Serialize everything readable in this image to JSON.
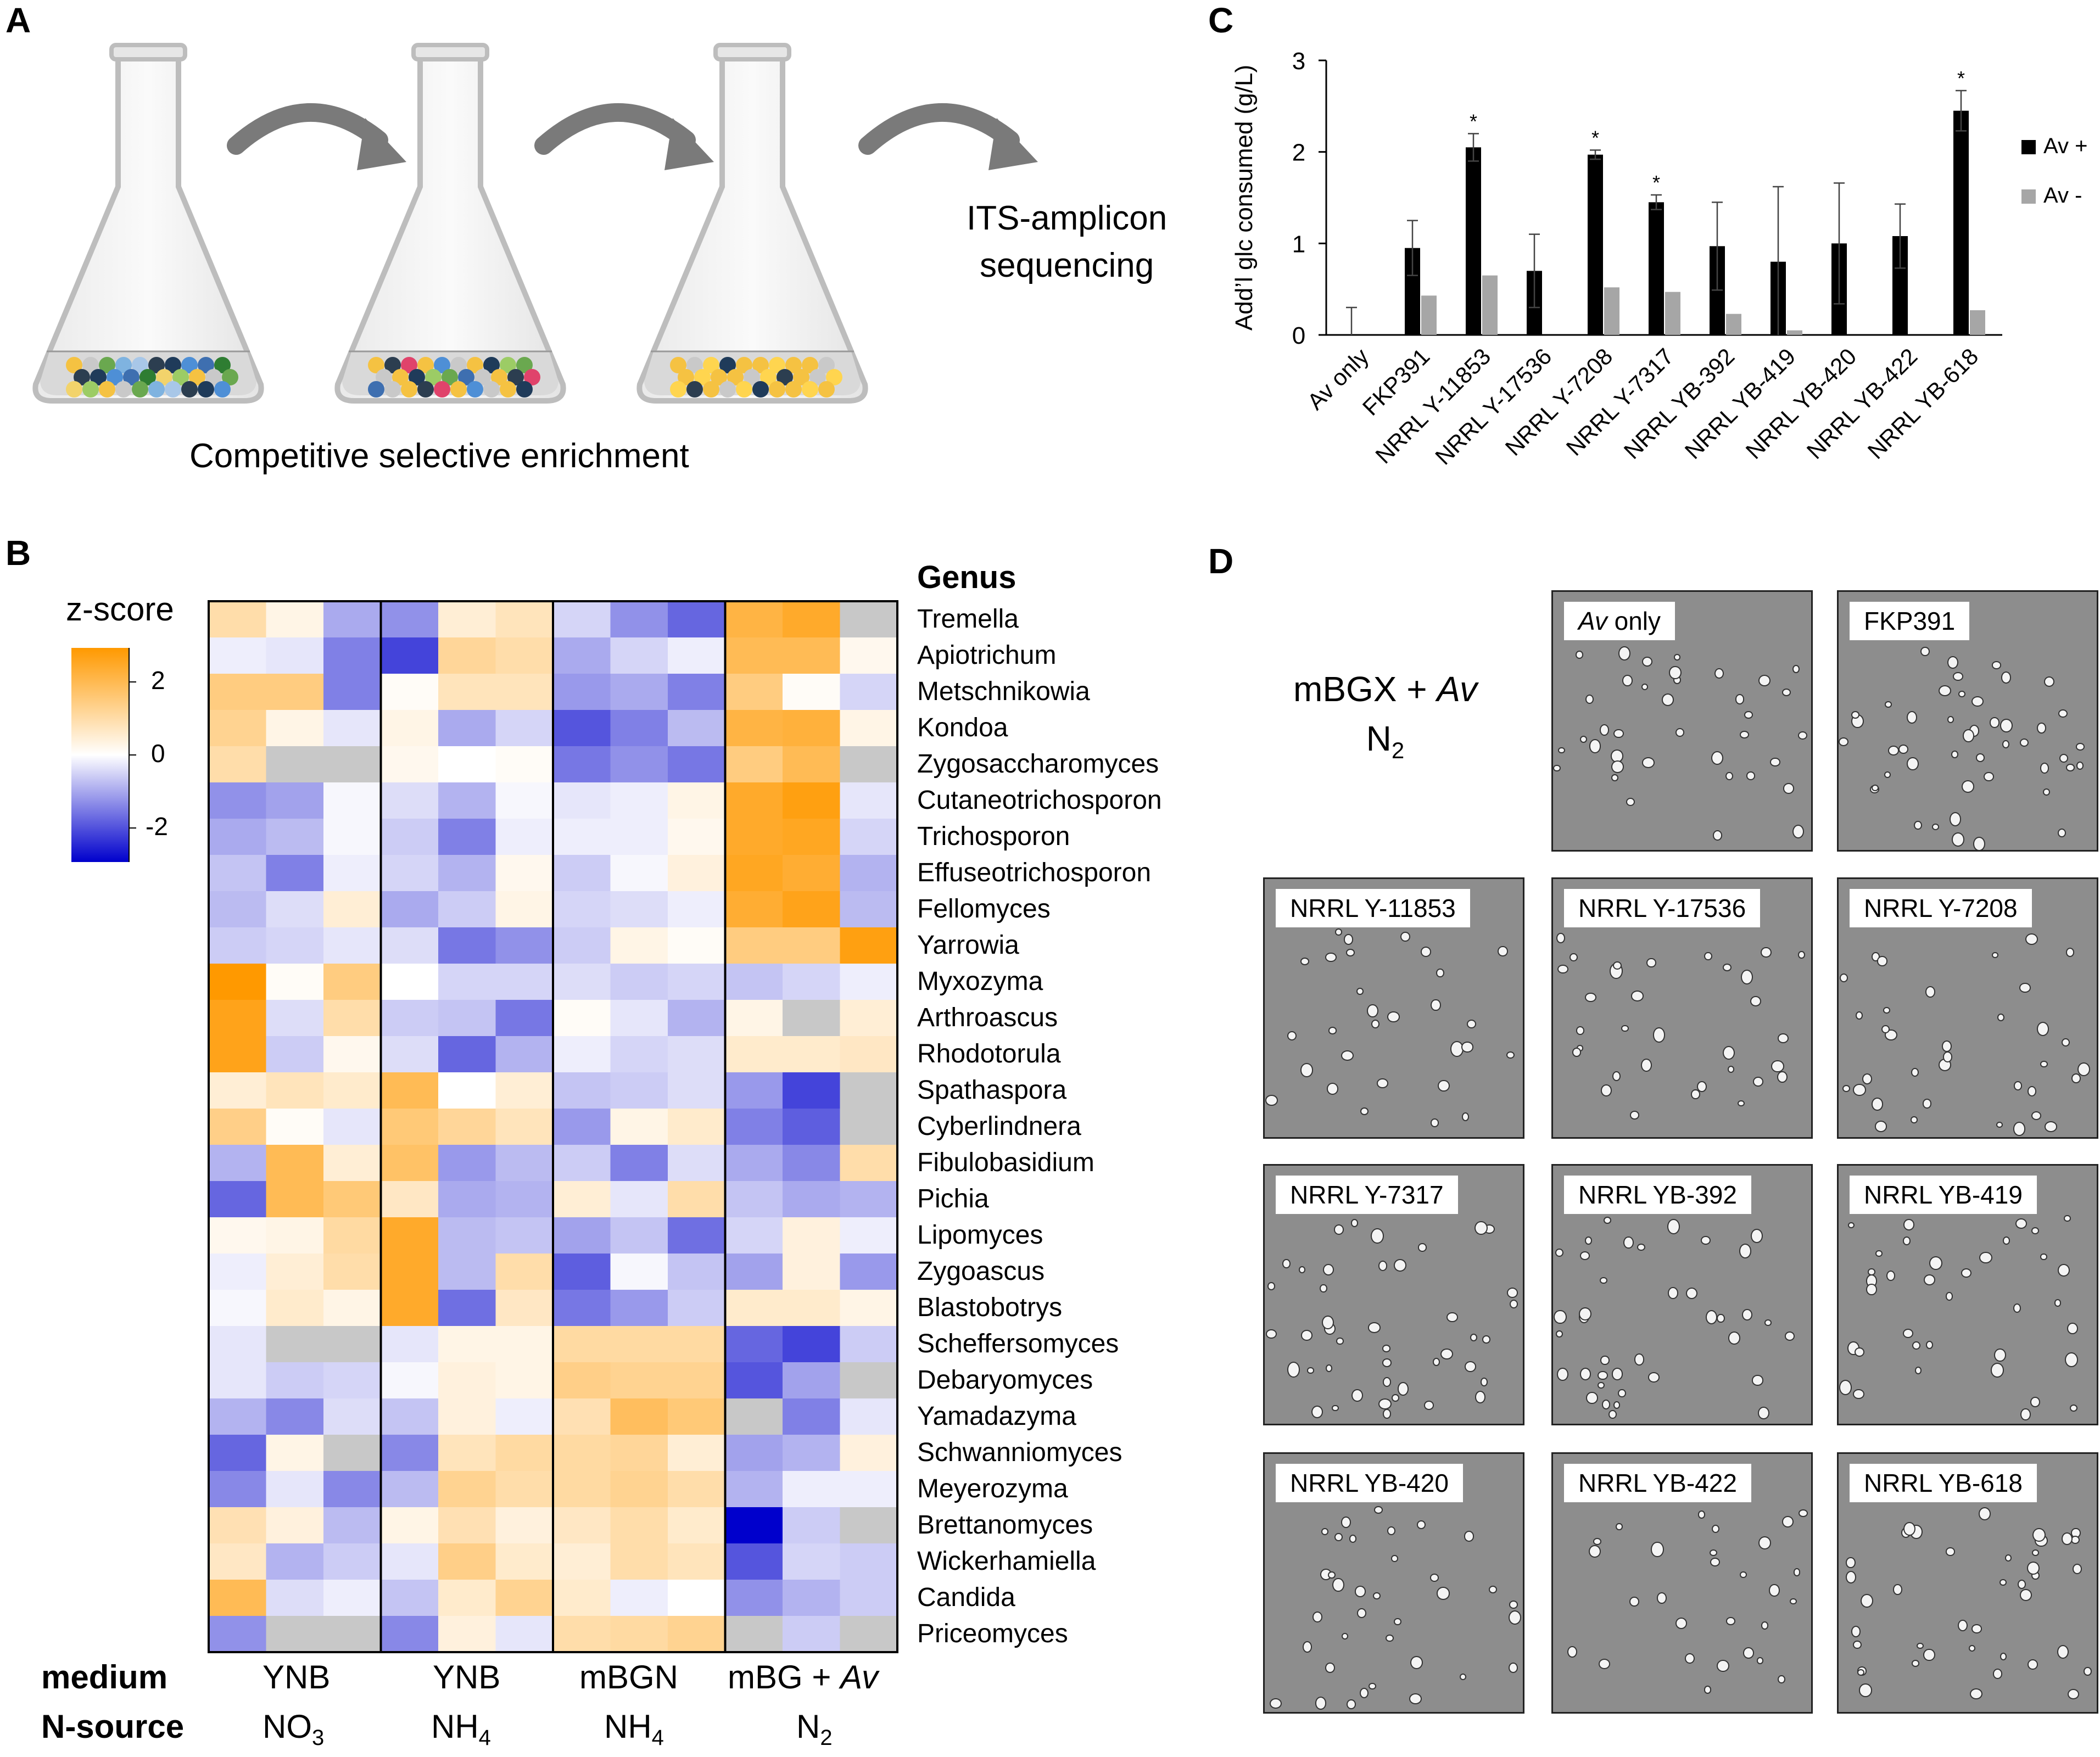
{
  "panels": {
    "a": "A",
    "b": "B",
    "c": "C",
    "d": "D"
  },
  "panel_a": {
    "caption": "Competitive selective enrichment",
    "ITS_line1": "ITS-amplicon",
    "ITS_line2": "sequencing"
  },
  "panel_b": {
    "colorbar_title": "z-score",
    "colorbar_ticks": [
      "2",
      "0",
      "-2"
    ],
    "genus_header": "Genus",
    "genera": [
      "Tremella",
      "Apiotrichum",
      "Metschnikowia",
      "Kondoa",
      "Zygosaccharomyces",
      "Cutaneotrichosporon",
      "Trichosporon",
      "Effuseotrichosporon",
      "Fellomyces",
      "Yarrowia",
      "Myxozyma",
      "Arthroascus",
      "Rhodotorula",
      "Spathaspora",
      "Cyberlindnera",
      "Fibulobasidium",
      "Pichia",
      "Lipomyces",
      "Zygoascus",
      "Blastobotrys",
      "Scheffersomyces",
      "Debaryomyces",
      "Yamadazyma",
      "Schwanniomyces",
      "Meyerozyma",
      "Brettanomyces",
      "Wickerhamiella",
      "Candida",
      "Priceomyces"
    ],
    "row_label_medium": "medium",
    "row_label_nsource": "N-source",
    "groups": [
      {
        "medium": "YNB",
        "nsource": "NO",
        "sub": "3"
      },
      {
        "medium": "YNB",
        "nsource": "NH",
        "sub": "4"
      },
      {
        "medium": "mBGN",
        "nsource": "NH",
        "sub": "4"
      },
      {
        "medium": "mBG + ",
        "medium_italic": "Av",
        "nsource": "N",
        "sub": "2"
      }
    ],
    "z_values": [
      [
        1.0,
        0.3,
        -1.0,
        -1.3,
        0.5,
        0.8,
        -0.5,
        -1.3,
        -1.8,
        2.2,
        2.5,
        null
      ],
      [
        -0.2,
        -0.3,
        -1.5,
        -2.2,
        1.2,
        1.0,
        -1.0,
        -0.5,
        -0.2,
        2.0,
        2.0,
        0.2
      ],
      [
        1.5,
        1.5,
        -1.5,
        0.1,
        0.8,
        0.8,
        -1.2,
        -1.0,
        -1.5,
        1.5,
        0.1,
        -0.5
      ],
      [
        1.3,
        0.3,
        -0.3,
        0.3,
        -1.0,
        -0.5,
        -2.0,
        -1.5,
        -0.8,
        2.2,
        2.3,
        0.3
      ],
      [
        1.0,
        null,
        null,
        0.2,
        0.0,
        0.1,
        -1.6,
        -1.3,
        -1.6,
        1.5,
        2.0,
        null
      ],
      [
        -1.3,
        -1.1,
        -0.1,
        -0.4,
        -0.9,
        -0.1,
        -0.3,
        -0.2,
        0.3,
        2.5,
        2.8,
        -0.3
      ],
      [
        -1.0,
        -0.8,
        -0.1,
        -0.6,
        -1.5,
        -0.2,
        -0.2,
        -0.2,
        0.2,
        2.5,
        2.6,
        -0.5
      ],
      [
        -0.7,
        -1.5,
        -0.2,
        -0.5,
        -0.9,
        0.2,
        -0.6,
        -0.1,
        0.4,
        2.6,
        2.4,
        -0.9
      ],
      [
        -0.8,
        -0.4,
        0.5,
        -1.0,
        -0.6,
        0.3,
        -0.5,
        -0.4,
        -0.2,
        2.4,
        2.7,
        -0.8
      ],
      [
        -0.6,
        -0.5,
        -0.3,
        -0.4,
        -1.6,
        -1.3,
        -0.6,
        0.3,
        0.1,
        1.5,
        1.5,
        2.8
      ],
      [
        3.0,
        0.1,
        1.5,
        0.0,
        -0.5,
        -0.5,
        -0.4,
        -0.6,
        -0.5,
        -0.7,
        -0.5,
        -0.2
      ],
      [
        2.7,
        -0.4,
        1.0,
        -0.6,
        -0.7,
        -1.6,
        0.1,
        -0.3,
        -0.9,
        0.3,
        null,
        0.5
      ],
      [
        2.7,
        -0.6,
        0.2,
        -0.4,
        -1.8,
        -0.9,
        -0.2,
        -0.5,
        -0.4,
        0.6,
        0.6,
        0.7
      ],
      [
        0.5,
        0.8,
        0.6,
        2.0,
        0.0,
        0.5,
        -0.7,
        -0.6,
        -0.4,
        -1.2,
        -2.2,
        null
      ],
      [
        1.4,
        0.1,
        -0.3,
        1.6,
        1.2,
        0.8,
        -1.2,
        0.3,
        0.6,
        -1.5,
        -1.9,
        null
      ],
      [
        -0.9,
        2.0,
        0.5,
        1.8,
        -1.2,
        -0.8,
        -0.6,
        -1.5,
        -0.4,
        -1.0,
        -1.4,
        1.0
      ],
      [
        -1.8,
        2.0,
        1.6,
        0.7,
        -1.0,
        -0.9,
        0.5,
        -0.3,
        1.0,
        -0.7,
        -1.0,
        -0.9
      ],
      [
        0.2,
        0.3,
        1.1,
        2.5,
        -0.8,
        -0.7,
        -1.1,
        -0.7,
        -1.7,
        -0.5,
        0.4,
        -0.2
      ],
      [
        -0.2,
        0.5,
        1.0,
        2.5,
        -0.8,
        1.0,
        -1.9,
        -0.1,
        -0.7,
        -1.1,
        0.4,
        -1.2
      ],
      [
        -0.1,
        0.6,
        0.3,
        2.5,
        -1.7,
        0.7,
        -1.6,
        -1.2,
        -0.6,
        0.6,
        0.6,
        0.3
      ],
      [
        -0.3,
        null,
        null,
        -0.3,
        0.3,
        0.3,
        1.1,
        1.1,
        1.1,
        -1.8,
        -2.2,
        -0.6
      ],
      [
        -0.3,
        -0.6,
        -0.5,
        -0.1,
        0.4,
        0.3,
        1.4,
        1.3,
        1.3,
        -2.0,
        -1.1,
        null
      ],
      [
        -0.9,
        -1.4,
        -0.4,
        -0.7,
        0.4,
        -0.2,
        0.9,
        1.9,
        1.6,
        null,
        -1.5,
        -0.3
      ],
      [
        -1.8,
        0.3,
        null,
        -1.4,
        0.8,
        1.1,
        1.1,
        1.2,
        0.5,
        -1.1,
        -0.9,
        0.4
      ],
      [
        -1.4,
        -0.3,
        -1.4,
        -0.8,
        1.3,
        1.0,
        1.1,
        1.3,
        1.0,
        -0.9,
        -0.2,
        -0.2
      ],
      [
        0.9,
        0.4,
        -0.8,
        0.3,
        0.9,
        0.4,
        0.7,
        1.0,
        0.6,
        -3.0,
        -0.6,
        null
      ],
      [
        0.7,
        -0.9,
        -0.6,
        -0.3,
        1.4,
        0.6,
        0.5,
        1.0,
        0.8,
        -2.0,
        -0.5,
        -0.6
      ],
      [
        2.0,
        -0.4,
        -0.2,
        -0.7,
        0.6,
        1.3,
        0.6,
        -0.2,
        0.0,
        -1.3,
        -0.9,
        -0.6
      ],
      [
        -1.3,
        null,
        null,
        -1.4,
        0.4,
        -0.3,
        1.0,
        1.1,
        1.3,
        null,
        -0.6,
        null
      ]
    ]
  },
  "chart_data": {
    "type": "bar",
    "title": "",
    "ylabel": "Add’l glc consumed (g/L)",
    "xlabel": "",
    "ylim": [
      0,
      3
    ],
    "yticks": [
      "0",
      "1",
      "2",
      "3"
    ],
    "categories": [
      "Av only",
      "FKP391",
      "NRRL Y-11853",
      "NRRL Y-17536",
      "NRRL Y-7208",
      "NRRL Y-7317",
      "NRRL YB-392",
      "NRRL YB-419",
      "NRRL YB-420",
      "NRRL YB-422",
      "NRRL YB-618"
    ],
    "series": [
      {
        "name": "Av +",
        "color": "#000000",
        "values": [
          0.0,
          0.95,
          2.05,
          0.7,
          1.97,
          1.45,
          0.97,
          0.8,
          1.0,
          1.08,
          2.45
        ],
        "errors": [
          0.3,
          0.3,
          0.15,
          0.4,
          0.05,
          0.08,
          0.48,
          0.82,
          0.66,
          0.35,
          0.22
        ]
      },
      {
        "name": "Av -",
        "color": "#a6a6a6",
        "values": [
          0.0,
          0.43,
          0.65,
          0.0,
          0.52,
          0.47,
          0.23,
          0.05,
          0.0,
          0.0,
          0.27
        ]
      }
    ],
    "significance": [
      "",
      "",
      "*",
      "",
      "*",
      "*",
      "",
      "",
      "",
      "",
      "*"
    ],
    "legend": [
      "Av +",
      "Av -"
    ]
  },
  "panel_d": {
    "condition_line1": "mBGX + ",
    "condition_italic": "Av",
    "condition_line2": "N",
    "condition_sub": "2",
    "images": [
      {
        "label": "only",
        "label_italic": "Av"
      },
      {
        "label": "FKP391"
      },
      {
        "label": "NRRL Y-11853"
      },
      {
        "label": "NRRL Y-17536"
      },
      {
        "label": "NRRL Y-7208"
      },
      {
        "label": "NRRL Y-7317"
      },
      {
        "label": "NRRL YB-392"
      },
      {
        "label": "NRRL YB-419"
      },
      {
        "label": "NRRL YB-420"
      },
      {
        "label": "NRRL YB-422"
      },
      {
        "label": "NRRL YB-618"
      }
    ]
  }
}
